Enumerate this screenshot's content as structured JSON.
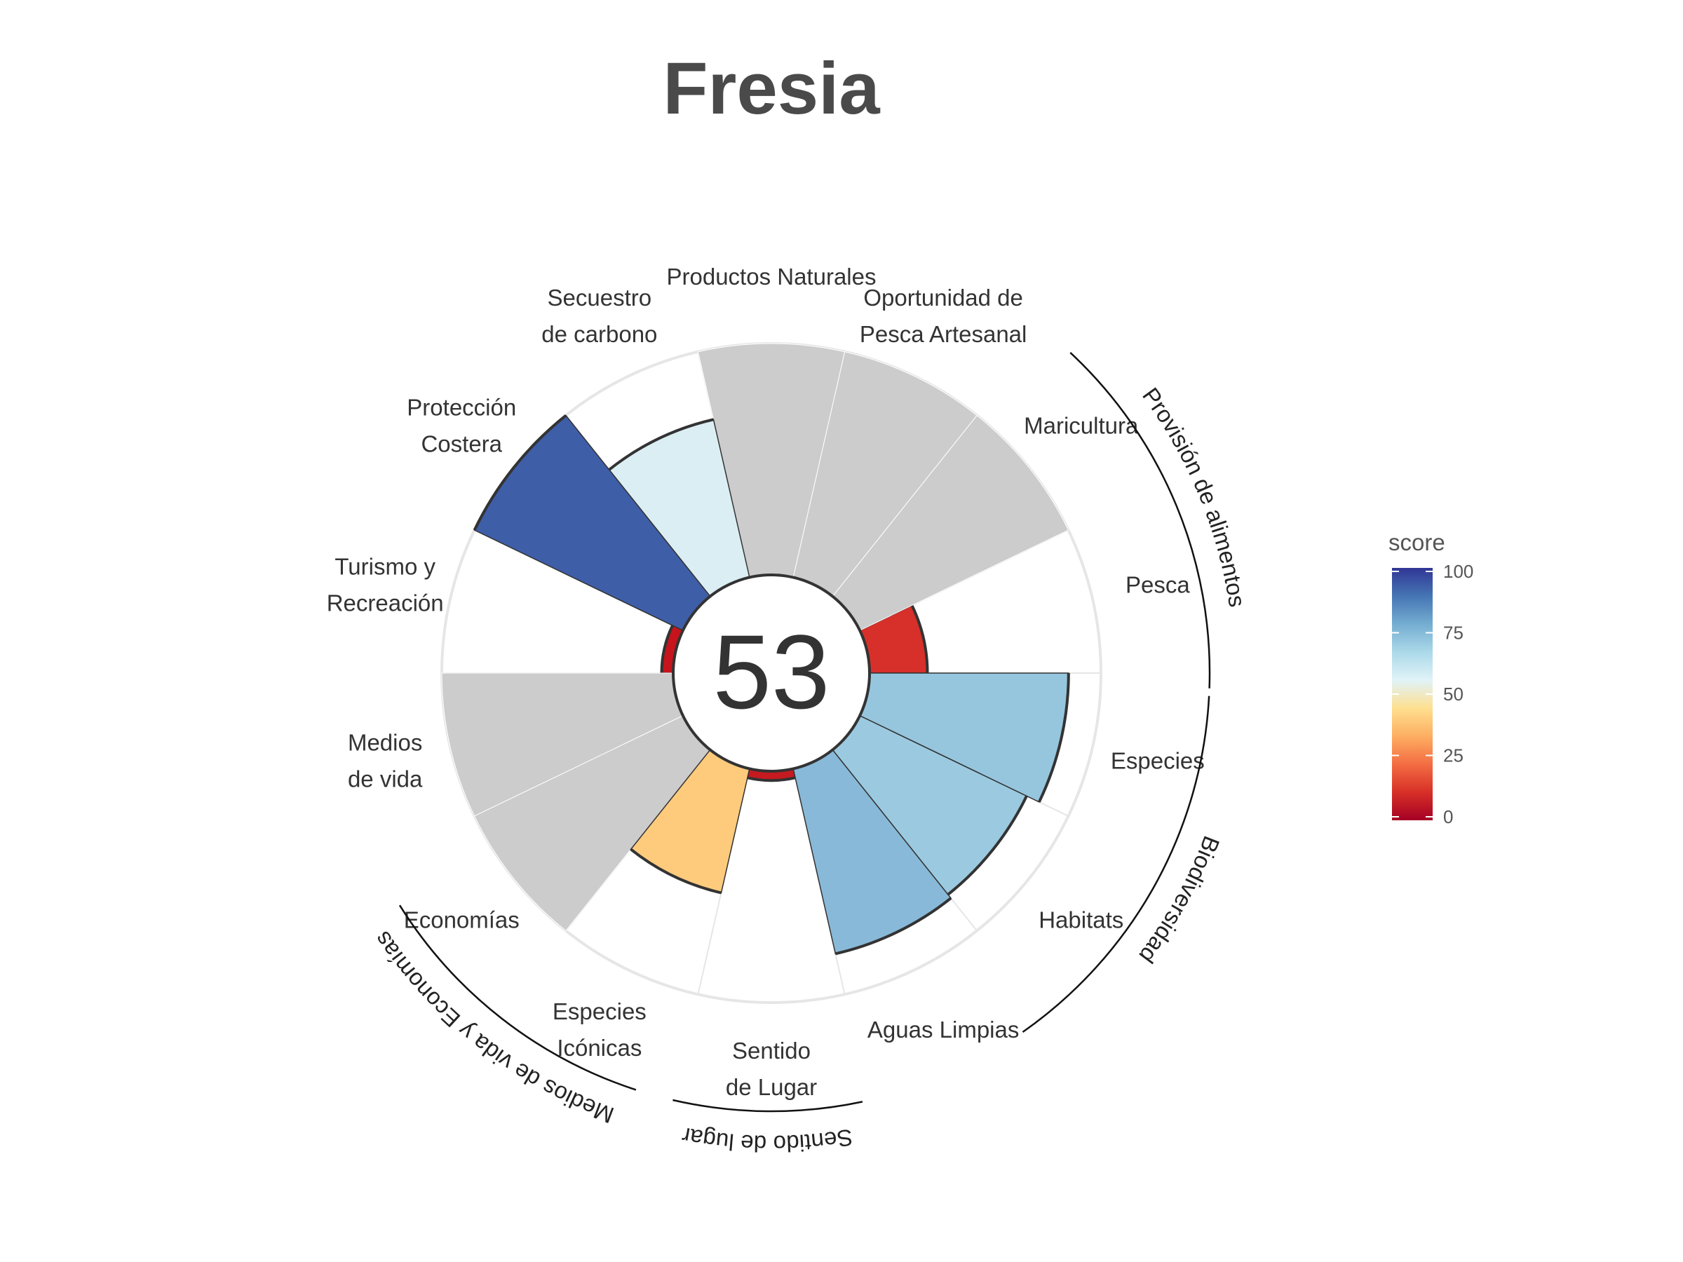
{
  "chart_data": {
    "type": "polar-bar",
    "title": "Fresia",
    "center_score": "53",
    "score_max": 100,
    "petals": [
      {
        "label": [
          "Pesca"
        ],
        "score": 25,
        "color": "#d7302a",
        "outlined": true
      },
      {
        "label": [
          "Maricultura"
        ],
        "score": null,
        "color": "#cccccc",
        "outlined": false
      },
      {
        "label": [
          "Oportunidad de",
          "Pesca Artesanal"
        ],
        "score": null,
        "color": "#cccccc",
        "outlined": false
      },
      {
        "label": [
          "Productos Naturales"
        ],
        "score": null,
        "color": "#cccccc",
        "outlined": false
      },
      {
        "label": [
          "Secuestro",
          "de carbono"
        ],
        "score": 70,
        "color": "#dbeef4",
        "outlined": true
      },
      {
        "label": [
          "Protección",
          "Costera"
        ],
        "score": 100,
        "color": "#3e5ea8",
        "outlined": true
      },
      {
        "label": [
          "Turismo y",
          "Recreación"
        ],
        "score": 5,
        "color": "#c7141c",
        "outlined": true
      },
      {
        "label": [
          "Medios",
          "de vida"
        ],
        "score": null,
        "color": "#cccccc",
        "outlined": false
      },
      {
        "label": [
          "Economías"
        ],
        "score": null,
        "color": "#cccccc",
        "outlined": false
      },
      {
        "label": [
          "Especies",
          "Icónicas"
        ],
        "score": 55,
        "color": "#fecb7d",
        "outlined": true
      },
      {
        "label": [
          "Sentido",
          "de Lugar"
        ],
        "score": 4,
        "color": "#c51a20",
        "outlined": true
      },
      {
        "label": [
          "Aguas Limpias"
        ],
        "score": 82,
        "color": "#88b9d9",
        "outlined": true
      },
      {
        "label": [
          "Habitats"
        ],
        "score": 80,
        "color": "#9bcae0",
        "outlined": true
      },
      {
        "label": [
          "Especies"
        ],
        "score": 86,
        "color": "#96c6de",
        "outlined": true
      }
    ],
    "groups": [
      {
        "name": "Provisión de alimentos"
      },
      {
        "name": "Biodiversidad"
      },
      {
        "name": "Sentido de lugar"
      },
      {
        "name": "Medios de vida y Economías"
      }
    ],
    "legend": {
      "title": "score",
      "ticks": [
        "100",
        "75",
        "50",
        "25",
        "0"
      ],
      "colors": [
        "#313695",
        "#4575b4",
        "#74add1",
        "#abd9e9",
        "#e0f3f8",
        "#fee090",
        "#fdae61",
        "#f46d43",
        "#d73027",
        "#a50026"
      ]
    },
    "grid_color": "#e6e6e6",
    "na_color": "#cccccc"
  }
}
